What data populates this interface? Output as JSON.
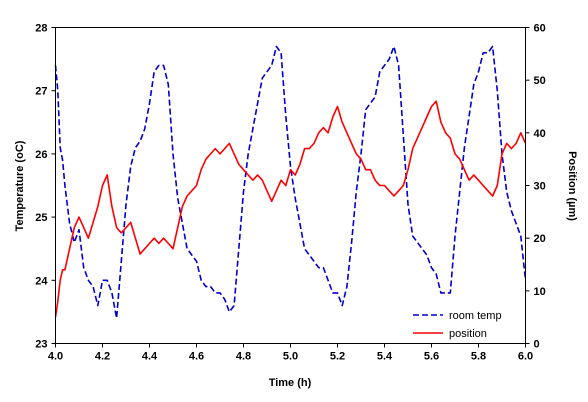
{
  "chart_data": {
    "type": "line",
    "title": "",
    "xlabel": "Time (h)",
    "ylabel": "Temperature (oC)",
    "y2label": "Position (µm)",
    "xlim": [
      4.0,
      6.0
    ],
    "ylim": [
      23,
      28
    ],
    "y2lim": [
      0,
      60
    ],
    "xticks": [
      "4.0",
      "4.2",
      "4.4",
      "4.6",
      "4.8",
      "5.0",
      "5.2",
      "5.4",
      "5.6",
      "5.8",
      "6.0"
    ],
    "yticks": [
      "23",
      "24",
      "25",
      "26",
      "27",
      "28"
    ],
    "y2ticks": [
      "0",
      "10",
      "20",
      "30",
      "40",
      "50",
      "60"
    ],
    "grid": false,
    "legend": "bottom-right",
    "series": [
      {
        "name": "room temp",
        "axis": "left",
        "color": "#0000cc",
        "dash": "dashed",
        "x": [
          4.0,
          4.01,
          4.02,
          4.03,
          4.04,
          4.06,
          4.08,
          4.1,
          4.12,
          4.14,
          4.16,
          4.18,
          4.2,
          4.22,
          4.24,
          4.26,
          4.28,
          4.3,
          4.32,
          4.34,
          4.36,
          4.38,
          4.4,
          4.42,
          4.44,
          4.46,
          4.48,
          4.5,
          4.52,
          4.54,
          4.56,
          4.58,
          4.6,
          4.62,
          4.64,
          4.66,
          4.68,
          4.7,
          4.72,
          4.74,
          4.76,
          4.78,
          4.8,
          4.82,
          4.84,
          4.86,
          4.88,
          4.9,
          4.92,
          4.94,
          4.96,
          4.98,
          5.0,
          5.02,
          5.04,
          5.06,
          5.08,
          5.1,
          5.12,
          5.14,
          5.16,
          5.18,
          5.2,
          5.22,
          5.24,
          5.26,
          5.28,
          5.3,
          5.32,
          5.34,
          5.36,
          5.38,
          5.4,
          5.42,
          5.44,
          5.46,
          5.48,
          5.5,
          5.52,
          5.54,
          5.56,
          5.58,
          5.6,
          5.62,
          5.64,
          5.66,
          5.68,
          5.7,
          5.72,
          5.74,
          5.76,
          5.78,
          5.8,
          5.82,
          5.84,
          5.86,
          5.88,
          5.9,
          5.92,
          5.94,
          5.96,
          5.98,
          6.0
        ],
        "values": [
          27.4,
          27.0,
          26.1,
          25.9,
          25.5,
          24.9,
          24.6,
          24.8,
          24.2,
          24.0,
          23.9,
          23.6,
          24.0,
          24.0,
          23.8,
          23.4,
          24.3,
          25.2,
          25.8,
          26.1,
          26.2,
          26.4,
          26.8,
          27.3,
          27.4,
          27.4,
          27.1,
          26.0,
          25.3,
          24.9,
          24.5,
          24.4,
          24.3,
          24.0,
          23.9,
          23.9,
          23.8,
          23.8,
          23.7,
          23.5,
          23.6,
          24.5,
          25.4,
          26.0,
          26.4,
          26.8,
          27.2,
          27.3,
          27.4,
          27.7,
          27.6,
          26.6,
          25.8,
          25.3,
          24.9,
          24.5,
          24.4,
          24.3,
          24.2,
          24.2,
          24.0,
          23.8,
          23.8,
          23.6,
          23.9,
          24.6,
          25.4,
          26.0,
          26.7,
          26.8,
          26.9,
          27.3,
          27.4,
          27.5,
          27.7,
          27.4,
          26.3,
          25.2,
          24.7,
          24.6,
          24.5,
          24.4,
          24.2,
          24.1,
          23.8,
          23.8,
          23.8,
          24.7,
          25.4,
          26.1,
          26.6,
          27.1,
          27.3,
          27.6,
          27.6,
          27.7,
          27.0,
          26.0,
          25.4,
          25.1,
          24.9,
          24.7,
          24.0
        ]
      },
      {
        "name": "position",
        "axis": "right",
        "color": "#ff0000",
        "dash": "solid",
        "x": [
          4.0,
          4.01,
          4.02,
          4.03,
          4.04,
          4.06,
          4.08,
          4.1,
          4.12,
          4.14,
          4.16,
          4.18,
          4.2,
          4.22,
          4.24,
          4.26,
          4.28,
          4.3,
          4.32,
          4.34,
          4.36,
          4.38,
          4.4,
          4.42,
          4.44,
          4.46,
          4.48,
          4.5,
          4.52,
          4.54,
          4.56,
          4.58,
          4.6,
          4.62,
          4.64,
          4.66,
          4.68,
          4.7,
          4.72,
          4.74,
          4.76,
          4.78,
          4.8,
          4.82,
          4.84,
          4.86,
          4.88,
          4.9,
          4.92,
          4.94,
          4.96,
          4.98,
          5.0,
          5.02,
          5.04,
          5.06,
          5.08,
          5.1,
          5.12,
          5.14,
          5.16,
          5.18,
          5.2,
          5.22,
          5.24,
          5.26,
          5.28,
          5.3,
          5.32,
          5.34,
          5.36,
          5.38,
          5.4,
          5.42,
          5.44,
          5.46,
          5.48,
          5.5,
          5.52,
          5.54,
          5.56,
          5.58,
          5.6,
          5.62,
          5.64,
          5.66,
          5.68,
          5.7,
          5.72,
          5.74,
          5.76,
          5.78,
          5.8,
          5.82,
          5.84,
          5.86,
          5.88,
          5.9,
          5.92,
          5.94,
          5.96,
          5.98,
          6.0
        ],
        "values": [
          5.0,
          8.0,
          12.0,
          14.0,
          14.0,
          18.0,
          22.0,
          24.0,
          22.0,
          20.0,
          23.0,
          26.0,
          30.0,
          32.0,
          26.0,
          22.0,
          21.0,
          22.0,
          23.0,
          20.0,
          17.0,
          18.0,
          19.0,
          20.0,
          19.0,
          20.0,
          19.0,
          18.0,
          22.0,
          26.0,
          28.0,
          29.0,
          30.0,
          33.0,
          35.0,
          36.0,
          37.0,
          36.0,
          37.0,
          38.0,
          36.0,
          34.0,
          33.0,
          32.0,
          31.0,
          32.0,
          31.0,
          29.0,
          27.0,
          29.0,
          31.0,
          30.0,
          33.0,
          32.0,
          34.0,
          37.0,
          37.0,
          38.0,
          40.0,
          41.0,
          40.0,
          43.0,
          45.0,
          42.0,
          40.0,
          38.0,
          36.0,
          35.0,
          33.0,
          33.0,
          31.0,
          30.0,
          30.0,
          29.0,
          28.0,
          29.0,
          30.0,
          33.0,
          37.0,
          39.0,
          41.0,
          43.0,
          45.0,
          46.0,
          42.0,
          40.0,
          39.0,
          36.0,
          35.0,
          33.0,
          31.0,
          32.0,
          31.0,
          30.0,
          29.0,
          28.0,
          30.0,
          36.0,
          38.0,
          37.0,
          38.0,
          40.0,
          38.0
        ]
      }
    ]
  }
}
